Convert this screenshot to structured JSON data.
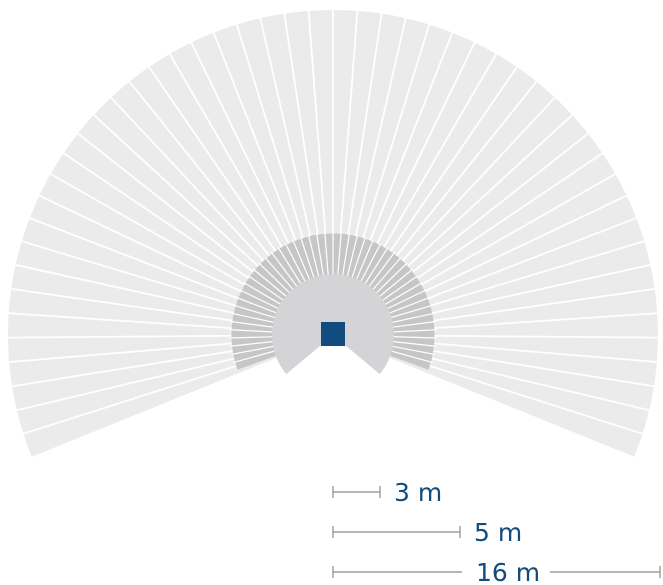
{
  "colors": {
    "outer_zone": "#ebebeb",
    "middle_zone": "#c6c6c6",
    "inner_zone": "#d4d4d6",
    "sensor": "#104c7f",
    "scale_line": "#8a8a8a",
    "scale_text": "#104c7f"
  },
  "detection_zones": [
    {
      "name": "outer",
      "radius_m": 16
    },
    {
      "name": "middle",
      "radius_m": 5
    },
    {
      "name": "inner",
      "radius_m": 3
    }
  ],
  "scale_bars": [
    {
      "label": "3 m",
      "length_m": 3
    },
    {
      "label": "5 m",
      "length_m": 5
    },
    {
      "label": "16 m",
      "length_m": 16
    }
  ]
}
